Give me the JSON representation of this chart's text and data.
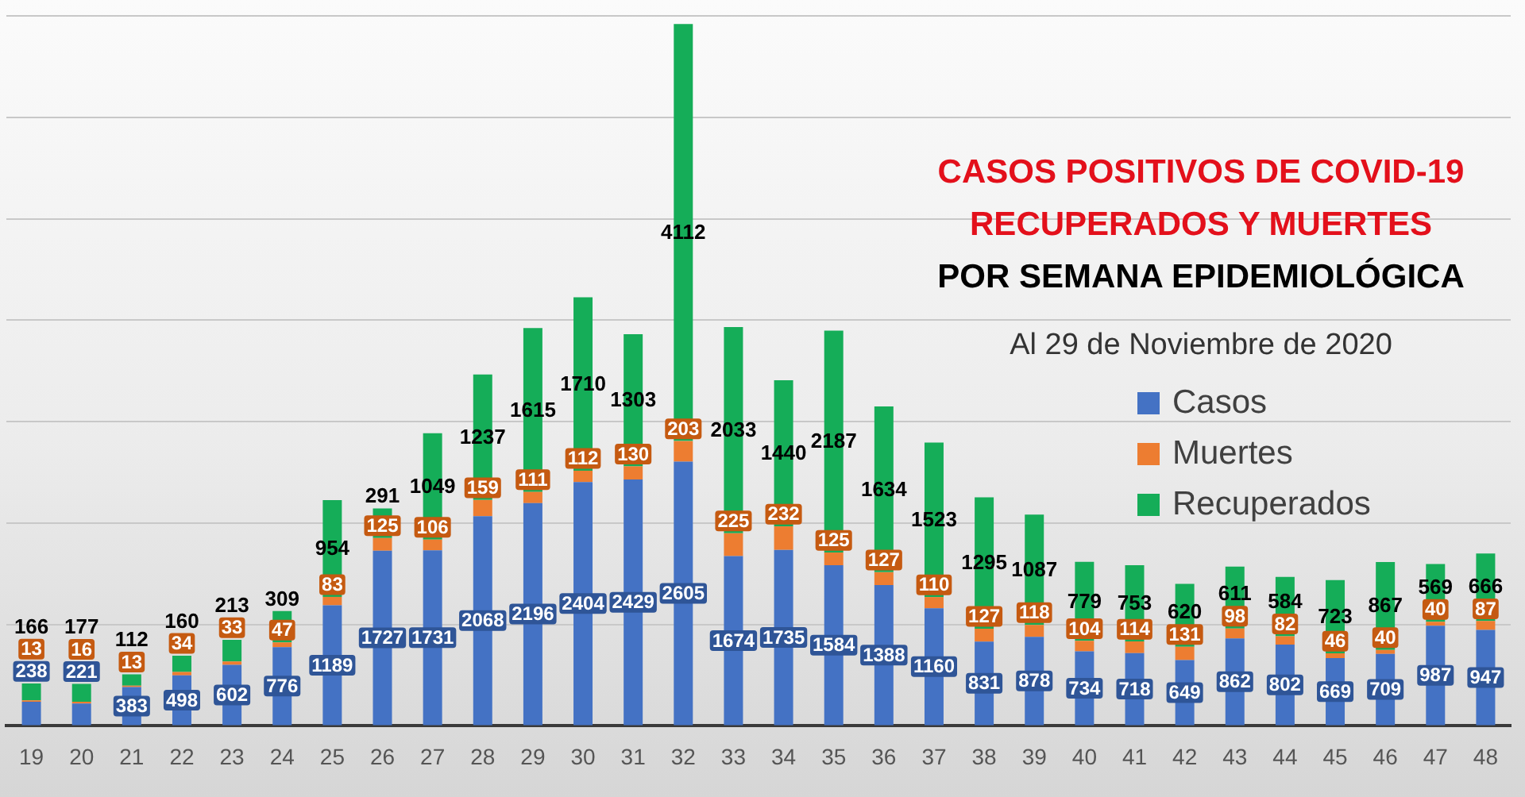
{
  "chart_data": {
    "type": "bar",
    "title": "CASOS POSITIVOS DE COVID-19 RECUPERADOS Y MUERTES",
    "subtitle": "POR SEMANA EPIDEMIOLÓGICA",
    "annotations": [
      "Al 29 de Noviembre de 2020"
    ],
    "categories": [
      "19",
      "20",
      "21",
      "22",
      "23",
      "24",
      "25",
      "26",
      "27",
      "28",
      "29",
      "30",
      "31",
      "32",
      "33",
      "34",
      "35",
      "36",
      "37",
      "38",
      "39",
      "40",
      "41",
      "42",
      "43",
      "44",
      "45",
      "46",
      "47",
      "48"
    ],
    "series": [
      {
        "name": "Casos",
        "color": "#4472c4",
        "values": [
          238,
          221,
          383,
          498,
          602,
          776,
          1189,
          1727,
          1731,
          2068,
          2196,
          2404,
          2429,
          2605,
          1674,
          1735,
          1584,
          1388,
          1160,
          831,
          878,
          734,
          718,
          649,
          862,
          802,
          669,
          709,
          987,
          947
        ]
      },
      {
        "name": "Muertes",
        "color": "#ed7d31",
        "values": [
          13,
          16,
          13,
          34,
          33,
          47,
          83,
          125,
          106,
          159,
          111,
          112,
          130,
          203,
          225,
          232,
          125,
          127,
          110,
          127,
          118,
          104,
          114,
          131,
          98,
          82,
          46,
          40,
          40,
          87
        ]
      },
      {
        "name": "Recuperados",
        "color": "#15ad58",
        "values": [
          166,
          177,
          112,
          160,
          213,
          309,
          954,
          291,
          1049,
          1237,
          1615,
          1710,
          1303,
          4112,
          2033,
          1440,
          2187,
          1634,
          1523,
          1295,
          1087,
          779,
          753,
          620,
          611,
          584,
          723,
          867,
          569,
          666
        ]
      }
    ],
    "stacked": true,
    "ylim": [
      0,
      7000
    ],
    "yticks": [
      {
        "value": 0,
        "label": null
      },
      {
        "value": 1000,
        "label": null
      },
      {
        "value": 2000,
        "label": null
      },
      {
        "value": 3000,
        "label": null
      },
      {
        "value": 4000,
        "label": null
      },
      {
        "value": 5000,
        "label": null
      },
      {
        "value": 6000,
        "label": null
      },
      {
        "value": 7000,
        "label": null
      }
    ],
    "tick_labels": "x",
    "grid": "y",
    "legend": "right",
    "data_labels": true
  }
}
